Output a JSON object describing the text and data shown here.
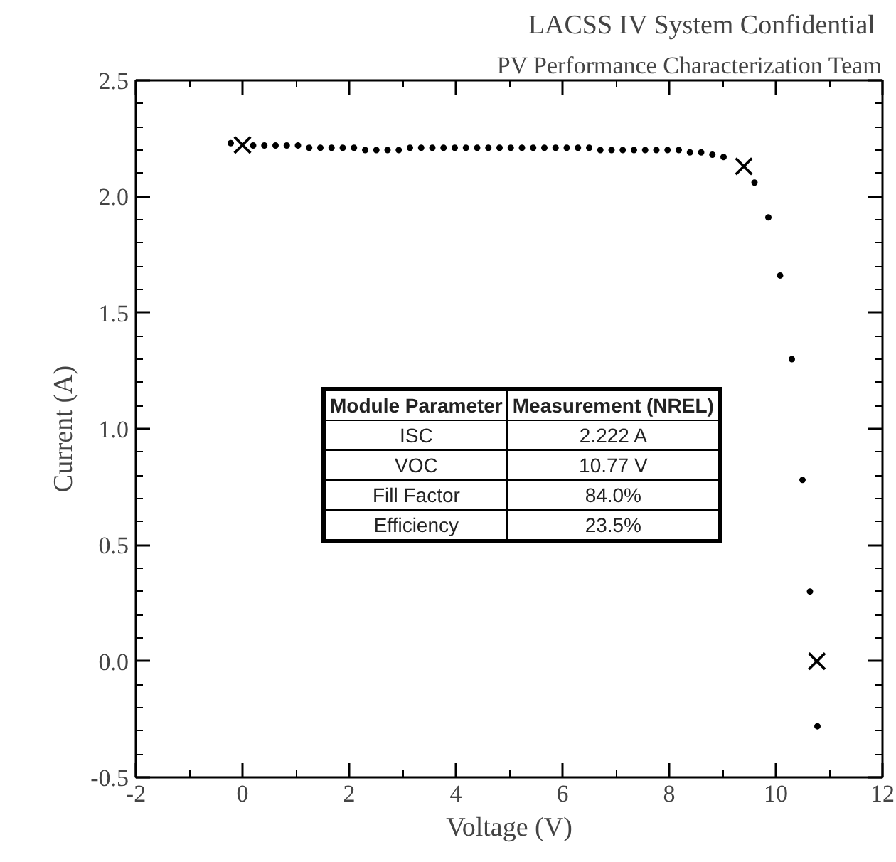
{
  "chart_data": {
    "type": "scatter",
    "title": "LACSS IV System  Confidential",
    "subtitle": "PV Performance Characterization Team",
    "xlabel": "Voltage (V)",
    "ylabel": "Current (A)",
    "xlim": [
      -2,
      12
    ],
    "ylim": [
      -0.5,
      2.5
    ],
    "xticks": [
      -2,
      0,
      2,
      4,
      6,
      8,
      10,
      12
    ],
    "yticks": [
      -0.5,
      {
        "value": 0,
        "label": "0.0"
      },
      0.5,
      {
        "value": 1,
        "label": "1.0"
      },
      1.5,
      {
        "value": 2,
        "label": "2.0"
      },
      2.5
    ],
    "grid": false,
    "series": [
      {
        "color": "#000000",
        "marker": "circle",
        "x": [
          -0.22,
          0.2,
          0.41,
          0.62,
          0.83,
          1.04,
          1.25,
          1.46,
          1.67,
          1.88,
          2.09,
          2.3,
          2.51,
          2.72,
          2.93,
          3.14,
          3.35,
          3.56,
          3.77,
          3.98,
          4.19,
          4.4,
          4.61,
          4.82,
          5.03,
          5.24,
          5.45,
          5.66,
          5.87,
          6.08,
          6.29,
          6.5,
          6.71,
          6.92,
          7.13,
          7.34,
          7.55,
          7.76,
          7.97,
          8.18,
          8.39,
          8.6,
          8.81,
          9.02,
          9.6,
          9.86,
          10.08,
          10.3,
          10.5,
          10.64,
          10.78
        ],
        "values": [
          2.23,
          2.22,
          2.22,
          2.22,
          2.22,
          2.22,
          2.21,
          2.21,
          2.21,
          2.21,
          2.21,
          2.2,
          2.2,
          2.2,
          2.2,
          2.21,
          2.21,
          2.21,
          2.21,
          2.21,
          2.21,
          2.21,
          2.21,
          2.21,
          2.21,
          2.21,
          2.21,
          2.21,
          2.21,
          2.21,
          2.21,
          2.21,
          2.2,
          2.2,
          2.2,
          2.2,
          2.2,
          2.2,
          2.2,
          2.2,
          2.19,
          2.19,
          2.18,
          2.17,
          2.06,
          1.91,
          1.66,
          1.3,
          0.78,
          0.3,
          -0.28
        ]
      },
      {
        "color": "#000000",
        "marker": "cross",
        "x": [
          0.0,
          9.4,
          10.77
        ],
        "values": [
          2.222,
          2.13,
          0.0
        ]
      }
    ],
    "annotations": [
      "Module Parameter",
      "Measurement (NREL)",
      "ISC",
      "2.222 A",
      "VOC",
      "10.77 V",
      "Fill Factor",
      "84.0%",
      "Efficiency",
      "23.5%"
    ]
  }
}
